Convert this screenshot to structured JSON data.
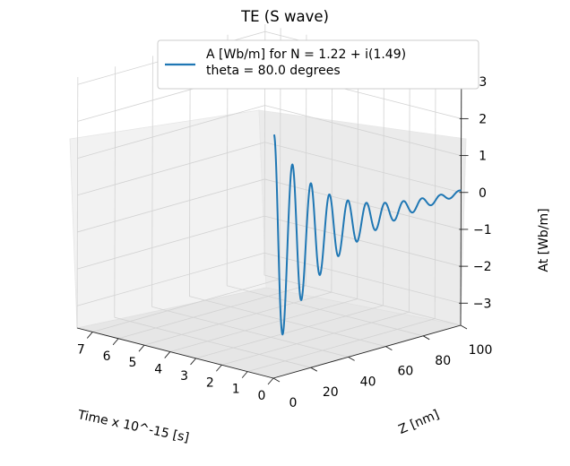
{
  "chart_data": {
    "type": "line",
    "title": "TE (S wave)",
    "legend": {
      "placement": "top-center",
      "entries": [
        "A [Wb/m] for N = 1.22 + i(1.49)\ntheta = 80.0 degrees"
      ]
    },
    "xlabel": "Time x 10^-15 [s]",
    "ylabel": "Z [nm]",
    "zlabel": "At [Wb/m]",
    "xlim": [
      0,
      7.6
    ],
    "ylim": [
      0,
      100
    ],
    "zlim": [
      -3.6,
      3.2
    ],
    "xticks": [
      "0",
      "1",
      "2",
      "3",
      "4",
      "5",
      "6",
      "7"
    ],
    "yticks": [
      "0",
      "20",
      "40",
      "60",
      "80",
      "100"
    ],
    "zticks": [
      "3",
      "2",
      "1",
      "0",
      "−1",
      "−2",
      "−3"
    ],
    "grid": true,
    "series": [
      {
        "name": "A [Wb/m] for N = 1.22 + i(1.49)\ntheta = 80.0 degrees",
        "color": "#1f77b4",
        "amplitude_start": 3.0,
        "decay_per_nm": 0.0386,
        "period_nm": 9.9,
        "x_constant": 0.0,
        "z_range": [
          0,
          100
        ]
      }
    ]
  }
}
